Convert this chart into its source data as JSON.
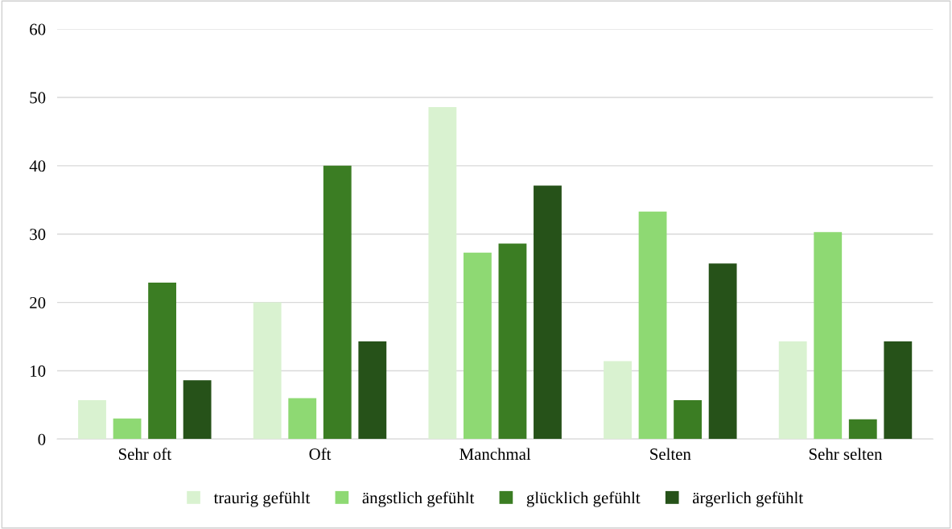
{
  "chart_data": {
    "type": "bar",
    "categories": [
      "Sehr oft",
      "Oft",
      "Manchmal",
      "Selten",
      "Sehr selten"
    ],
    "series": [
      {
        "name": "traurig gefühlt",
        "color": "#d9f2d0",
        "values": [
          5.7,
          20.0,
          48.6,
          11.4,
          14.3
        ]
      },
      {
        "name": "ängstlich gefühlt",
        "color": "#8ed973",
        "values": [
          3.0,
          6.0,
          27.3,
          33.3,
          30.3
        ]
      },
      {
        "name": "glücklich gefühlt",
        "color": "#3b7d23",
        "values": [
          22.9,
          40.0,
          28.6,
          5.7,
          2.9
        ]
      },
      {
        "name": "ärgerlich gefühlt",
        "color": "#265219",
        "values": [
          8.6,
          14.3,
          37.1,
          25.7,
          14.3
        ]
      }
    ],
    "ylim": [
      0,
      60
    ],
    "yticks": [
      0,
      10,
      20,
      30,
      40,
      50,
      60
    ],
    "grid": "y",
    "legend": "bottom"
  }
}
